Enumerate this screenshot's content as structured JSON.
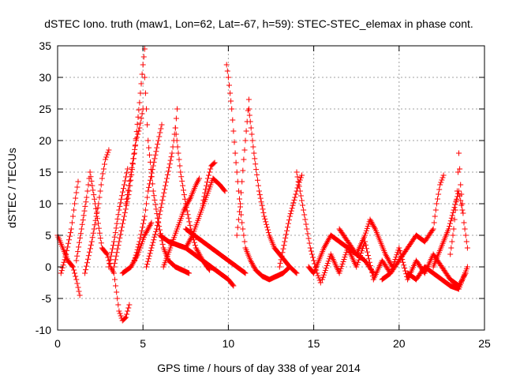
{
  "chart_data": {
    "type": "scatter",
    "title": "dSTEC Iono. truth (maw1, Lon=62, Lat=-67, h=59): STEC-STEC_elemax in phase cont.",
    "xlabel": "GPS time / hours of day 338 of year 2014",
    "ylabel": "dSTEC  / TECUs",
    "xlim": [
      0,
      25
    ],
    "ylim": [
      -10,
      35
    ],
    "xticks": [
      0,
      5,
      10,
      15,
      20,
      25
    ],
    "yticks": [
      -10,
      -5,
      0,
      5,
      10,
      15,
      20,
      25,
      30,
      35
    ],
    "grid": true,
    "marker": "+",
    "color": "#ff0000",
    "series": [
      {
        "x": [
          0.0,
          0.3,
          0.6,
          0.9,
          1.1,
          1.3
        ],
        "y": [
          5,
          3,
          1,
          0,
          -2,
          -4.5
        ]
      },
      {
        "x": [
          0.2,
          0.5,
          0.8,
          1.0,
          1.2
        ],
        "y": [
          -1,
          2,
          6,
          10,
          13.5
        ]
      },
      {
        "x": [
          1.1,
          1.4,
          1.7,
          1.9,
          2.2,
          2.6,
          2.9,
          3.1,
          3.3,
          3.4,
          3.5,
          3.6,
          3.8,
          4.0,
          4.2
        ],
        "y": [
          1,
          6,
          11,
          15,
          10,
          3,
          2,
          0,
          -1,
          -3,
          -5,
          -7,
          -8.5,
          -8,
          -6
        ]
      },
      {
        "x": [
          1.6,
          2.0,
          2.4,
          2.6,
          2.8,
          3.0
        ],
        "y": [
          -1,
          4,
          10,
          14,
          17,
          18.5
        ]
      },
      {
        "x": [
          3.0,
          3.3,
          3.6,
          3.9,
          4.1
        ],
        "y": [
          0,
          4,
          9,
          13,
          15.5
        ]
      },
      {
        "x": [
          3.3,
          3.6,
          3.9,
          4.2,
          4.5,
          4.8,
          5.0,
          5.1
        ],
        "y": [
          0,
          4,
          8,
          12,
          18,
          26,
          32,
          34.5
        ]
      },
      {
        "x": [
          4.0,
          4.3,
          4.6,
          4.8,
          5.0
        ],
        "y": [
          10,
          15,
          20,
          22,
          25
        ]
      },
      {
        "x": [
          5.1,
          5.3,
          5.6,
          5.9,
          6.2,
          6.5,
          6.9,
          7.3,
          7.7
        ],
        "y": [
          30,
          20,
          12,
          7,
          3,
          1,
          0,
          -0.5,
          -1
        ]
      },
      {
        "x": [
          3.8,
          4.3,
          4.7,
          5.1,
          5.5
        ],
        "y": [
          -1,
          0,
          2,
          5,
          7
        ]
      },
      {
        "x": [
          4.5,
          4.8,
          5.1,
          5.3,
          5.6,
          5.9,
          6.1
        ],
        "y": [
          1,
          4,
          8,
          12,
          16,
          20,
          22.5
        ]
      },
      {
        "x": [
          5.2,
          5.5,
          5.8,
          6.1,
          6.4,
          6.7,
          6.9,
          7.0
        ],
        "y": [
          0,
          3,
          6,
          10,
          14,
          18,
          22,
          25
        ]
      },
      {
        "x": [
          6.9,
          7.2,
          7.5,
          7.8,
          8.1,
          8.5,
          8.9
        ],
        "y": [
          22,
          15,
          10,
          6,
          3,
          1,
          -0.5
        ]
      },
      {
        "x": [
          6.2,
          6.6,
          7.0,
          7.4,
          7.8,
          8.1,
          8.3
        ],
        "y": [
          0,
          3,
          6,
          9,
          11,
          13,
          14
        ]
      },
      {
        "x": [
          7.5,
          7.9,
          8.3,
          8.7,
          9.1,
          9.5,
          9.8
        ],
        "y": [
          3,
          5,
          8,
          11,
          14,
          13,
          12
        ]
      },
      {
        "x": [
          8.5,
          8.8,
          9.0,
          9.2
        ],
        "y": [
          10,
          14,
          16,
          16.5
        ]
      },
      {
        "x": [
          6.0,
          6.5,
          7.0,
          7.5,
          8.0,
          8.5,
          9.0,
          9.5,
          10.0,
          10.3
        ],
        "y": [
          5,
          4,
          3.5,
          3,
          2,
          1,
          0,
          -1,
          -2,
          -3
        ]
      },
      {
        "x": [
          7.5,
          8.0,
          8.5,
          9.0,
          9.5,
          10.0,
          10.5,
          11.0
        ],
        "y": [
          6,
          5,
          4,
          3,
          2,
          1,
          0,
          -1
        ]
      },
      {
        "x": [
          9.9,
          10.0,
          10.2,
          10.4,
          10.6,
          10.8,
          11.0,
          11.3,
          11.6,
          12.0,
          12.4,
          12.8,
          13.2,
          13.6
        ],
        "y": [
          32,
          30,
          25,
          18,
          12,
          7,
          3,
          1,
          -0.5,
          -1.5,
          -2,
          -1.5,
          -1,
          0
        ]
      },
      {
        "x": [
          10.5,
          10.7,
          10.9,
          11.1,
          11.2
        ],
        "y": [
          5,
          10,
          17,
          23,
          26.5
        ]
      },
      {
        "x": [
          11.2,
          11.5,
          11.8,
          12.1,
          12.4,
          12.7,
          13.0,
          13.3,
          13.6,
          14.0
        ],
        "y": [
          25,
          18,
          12,
          8,
          5,
          3,
          2,
          1,
          0,
          -1
        ]
      },
      {
        "x": [
          13.0,
          13.3,
          13.6,
          13.9,
          14.1,
          14.3
        ],
        "y": [
          0,
          4,
          8,
          11,
          13,
          14.5
        ]
      },
      {
        "x": [
          14.0,
          14.2,
          14.4,
          14.6,
          14.8,
          15.0,
          15.2,
          15.4
        ],
        "y": [
          15,
          12,
          9,
          6,
          3,
          1,
          -1,
          -2.5
        ]
      },
      {
        "x": [
          14.7,
          15.0,
          15.3,
          15.6,
          16.0,
          16.5,
          17.0,
          17.5,
          18.0,
          18.5
        ],
        "y": [
          0,
          -1,
          1,
          3,
          5,
          4,
          3,
          2,
          1,
          -1
        ]
      },
      {
        "x": [
          15.5,
          16.0,
          16.5,
          17.0,
          17.5,
          18.0,
          18.5,
          19.0,
          19.5,
          20.0,
          20.5,
          21.0,
          21.5,
          22.0,
          22.5,
          23.0,
          23.5,
          23.9
        ],
        "y": [
          -2,
          2,
          -1,
          3,
          0,
          4,
          -2,
          1,
          -1,
          3,
          -2,
          1,
          -1,
          2,
          0,
          -2,
          -3,
          -1
        ]
      },
      {
        "x": [
          16.5,
          17.0,
          17.5,
          18.0,
          18.3,
          18.6,
          18.9,
          19.2,
          19.6
        ],
        "y": [
          6,
          4,
          2,
          5,
          7.5,
          6,
          4,
          2,
          0
        ]
      },
      {
        "x": [
          19.0,
          19.5,
          20.0,
          20.5,
          21.0,
          21.5,
          22.0,
          22.2,
          22.4,
          22.6
        ],
        "y": [
          -2,
          -1,
          1,
          3,
          5,
          4,
          6,
          10,
          13,
          14.5
        ]
      },
      {
        "x": [
          22.0,
          22.3,
          22.6,
          22.9,
          23.2,
          23.5,
          23.7
        ],
        "y": [
          0,
          2,
          4,
          6,
          9,
          12,
          9
        ]
      },
      {
        "x": [
          23.0,
          23.2,
          23.4,
          23.5,
          23.6,
          23.8,
          24.0
        ],
        "y": [
          2,
          6,
          12,
          18,
          13,
          7,
          3
        ]
      },
      {
        "x": [
          20.5,
          21.0,
          21.5,
          22.0,
          22.5,
          23.0,
          23.5,
          24.0
        ],
        "y": [
          -1,
          -2,
          0,
          -1,
          -2,
          -3,
          -3.5,
          0
        ]
      }
    ]
  }
}
